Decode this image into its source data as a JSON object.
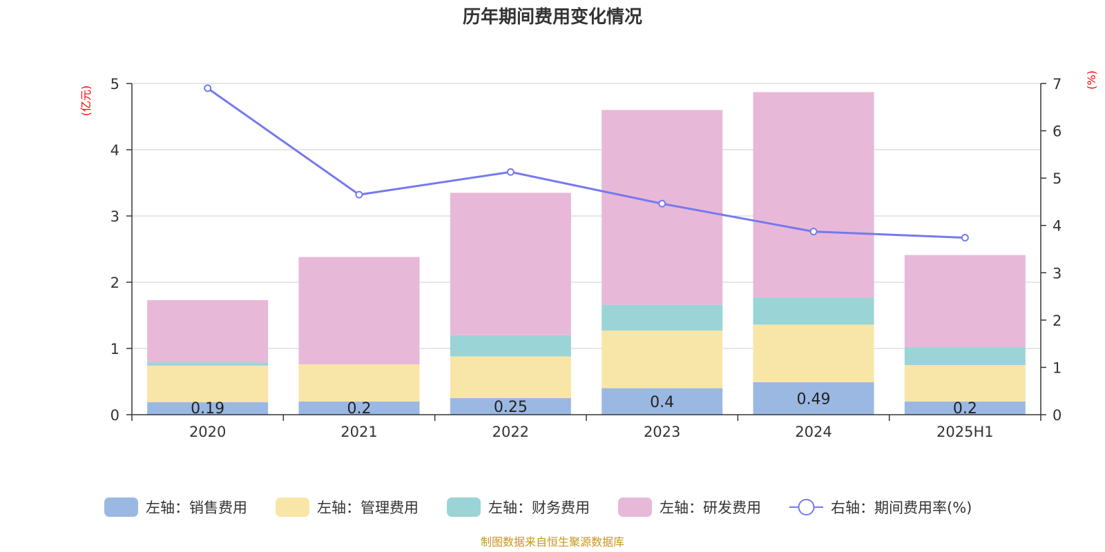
{
  "chart_data": {
    "type": "bar",
    "title": "历年期间费用变化情况",
    "categories": [
      "2020",
      "2021",
      "2022",
      "2023",
      "2024",
      "2025H1"
    ],
    "left_unit": "(亿元)",
    "right_unit": "(%)",
    "ylim_left": [
      0,
      5
    ],
    "yticks_left": [
      "0",
      "1",
      "2",
      "3",
      "4",
      "5"
    ],
    "ylim_right": [
      0,
      7
    ],
    "yticks_right": [
      "0",
      "1",
      "2",
      "3",
      "4",
      "5",
      "6",
      "7"
    ],
    "grid": true,
    "legend_position": "bottom",
    "series": [
      {
        "name": "左轴：销售费用",
        "kind": "bar",
        "axis": "left",
        "color": "#9bb8e3",
        "values": [
          0.19,
          0.2,
          0.25,
          0.4,
          0.49,
          0.2
        ],
        "labels": [
          "0.19",
          "0.2",
          "0.25",
          "0.4",
          "0.49",
          "0.2"
        ]
      },
      {
        "name": "左轴：管理费用",
        "kind": "bar",
        "axis": "left",
        "color": "#f8e6a8",
        "values": [
          0.55,
          0.56,
          0.63,
          0.87,
          0.87,
          0.55
        ]
      },
      {
        "name": "左轴：财务费用",
        "kind": "bar",
        "axis": "left",
        "color": "#9ad4d6",
        "values": [
          0.05,
          0.0,
          0.32,
          0.39,
          0.41,
          0.27
        ]
      },
      {
        "name": "左轴：研发费用",
        "kind": "bar",
        "axis": "left",
        "color": "#e8b8d8",
        "values": [
          0.94,
          1.62,
          2.15,
          2.94,
          3.1,
          1.39
        ]
      },
      {
        "name": "右轴：期间费用率(%)",
        "kind": "line",
        "axis": "right",
        "color": "#7579ee",
        "values": [
          6.9,
          4.65,
          5.13,
          4.46,
          3.87,
          3.74
        ]
      }
    ],
    "source": "制图数据来自恒生聚源数据库"
  }
}
